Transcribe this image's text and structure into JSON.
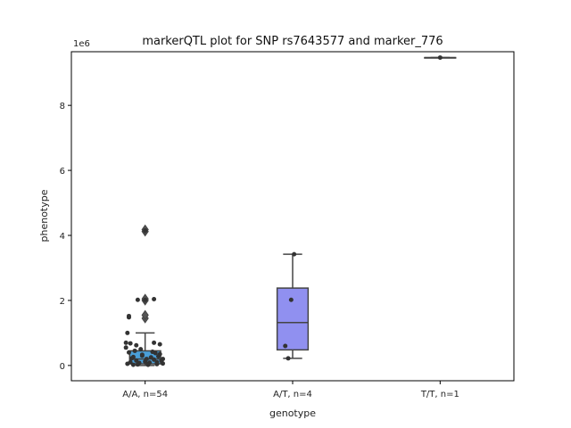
{
  "chart_data": {
    "type": "box",
    "title": "markerQTL plot for SNP rs7643577 and marker_776",
    "xlabel": "genotype",
    "ylabel": "phenotype",
    "y_offset_label": "1e6",
    "y_scale": 1000000,
    "ylim": [
      -0.47,
      9.65
    ],
    "yticks": [
      0,
      2,
      4,
      6,
      8
    ],
    "categories": [
      "A/A, n=54",
      "A/T, n=4",
      "T/T, n=1"
    ],
    "colors": [
      "#4a9fd8",
      "#9090f0",
      "#f08a8a"
    ],
    "boxes": [
      {
        "q1": 0.05,
        "median": 0.2,
        "q3": 0.45,
        "whisker_low": 0.0,
        "whisker_high": 1.0,
        "fliers": [
          1.45,
          1.55,
          2.0,
          2.05,
          4.12,
          4.18
        ]
      },
      {
        "q1": 0.48,
        "median": 1.32,
        "q3": 2.38,
        "whisker_low": 0.22,
        "whisker_high": 3.42,
        "fliers": []
      },
      {
        "q1": 9.47,
        "median": 9.47,
        "q3": 9.47,
        "whisker_low": 9.47,
        "whisker_high": 9.47,
        "fliers": []
      }
    ],
    "points": [
      {
        "g": 0,
        "dx": -0.12,
        "y": 0.05
      },
      {
        "g": 0,
        "dx": -0.1,
        "y": 0.1
      },
      {
        "g": 0,
        "dx": -0.08,
        "y": 0.02
      },
      {
        "g": 0,
        "dx": -0.06,
        "y": 0.15
      },
      {
        "g": 0,
        "dx": -0.04,
        "y": 0.08
      },
      {
        "g": 0,
        "dx": -0.02,
        "y": 0.3
      },
      {
        "g": 0,
        "dx": 0.0,
        "y": 0.12
      },
      {
        "g": 0,
        "dx": 0.02,
        "y": 0.05
      },
      {
        "g": 0,
        "dx": 0.04,
        "y": 0.25
      },
      {
        "g": 0,
        "dx": 0.06,
        "y": 0.18
      },
      {
        "g": 0,
        "dx": 0.08,
        "y": 0.1
      },
      {
        "g": 0,
        "dx": 0.1,
        "y": 0.35
      },
      {
        "g": 0,
        "dx": 0.12,
        "y": 0.06
      },
      {
        "g": 0,
        "dx": -0.11,
        "y": 0.4
      },
      {
        "g": 0,
        "dx": -0.07,
        "y": 0.45
      },
      {
        "g": 0,
        "dx": -0.03,
        "y": 0.5
      },
      {
        "g": 0,
        "dx": 0.01,
        "y": 0.2
      },
      {
        "g": 0,
        "dx": 0.05,
        "y": 0.42
      },
      {
        "g": 0,
        "dx": 0.09,
        "y": 0.28
      },
      {
        "g": 0,
        "dx": 0.11,
        "y": 0.15
      },
      {
        "g": 0,
        "dx": -0.09,
        "y": 0.22
      },
      {
        "g": 0,
        "dx": -0.05,
        "y": 0.03
      },
      {
        "g": 0,
        "dx": 0.03,
        "y": 0.09
      },
      {
        "g": 0,
        "dx": 0.07,
        "y": 0.38
      },
      {
        "g": 0,
        "dx": -0.13,
        "y": 0.55
      },
      {
        "g": 0,
        "dx": -0.1,
        "y": 0.68
      },
      {
        "g": 0,
        "dx": -0.06,
        "y": 0.62
      },
      {
        "g": 0,
        "dx": 0.1,
        "y": 0.65
      },
      {
        "g": 0,
        "dx": 0.06,
        "y": 0.7
      },
      {
        "g": 0,
        "dx": -0.13,
        "y": 0.7
      },
      {
        "g": 0,
        "dx": -0.12,
        "y": 1.0
      },
      {
        "g": 0,
        "dx": -0.11,
        "y": 1.48
      },
      {
        "g": 0,
        "dx": -0.11,
        "y": 1.52
      },
      {
        "g": 0,
        "dx": -0.05,
        "y": 2.02
      },
      {
        "g": 0,
        "dx": 0.0,
        "y": 2.02
      },
      {
        "g": 0,
        "dx": 0.06,
        "y": 2.04
      },
      {
        "g": 0,
        "dx": 0.0,
        "y": 4.15
      },
      {
        "g": 0,
        "dx": -0.02,
        "y": 0.33
      },
      {
        "g": 0,
        "dx": 0.02,
        "y": 0.02
      },
      {
        "g": 0,
        "dx": -0.08,
        "y": 0.26
      },
      {
        "g": 0,
        "dx": 0.08,
        "y": 0.04
      },
      {
        "g": 0,
        "dx": 0.12,
        "y": 0.2
      },
      {
        "g": 1,
        "dx": -0.05,
        "y": 0.6
      },
      {
        "g": 1,
        "dx": -0.03,
        "y": 0.22
      },
      {
        "g": 1,
        "dx": -0.01,
        "y": 2.02
      },
      {
        "g": 1,
        "dx": 0.01,
        "y": 3.42
      },
      {
        "g": 2,
        "dx": 0.0,
        "y": 9.47
      }
    ]
  }
}
